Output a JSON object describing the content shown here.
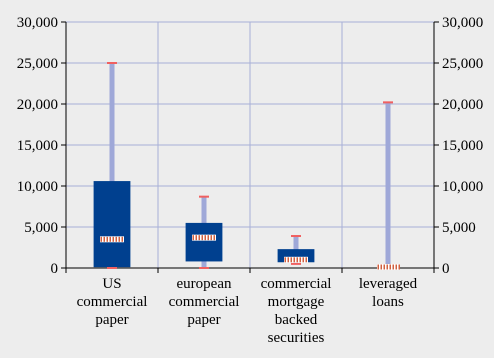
{
  "chart_data": {
    "type": "box",
    "title": "",
    "xlabel": "",
    "ylabel": "",
    "ylim": [
      0,
      30000
    ],
    "y_ticks": [
      "0",
      "5,000",
      "10,000",
      "15,000",
      "20,000",
      "25,000",
      "30,000"
    ],
    "y_tick_values": [
      0,
      5000,
      10000,
      15000,
      20000,
      25000,
      30000
    ],
    "right_axis_mirrors_left": true,
    "grid": true,
    "categories": [
      [
        "US",
        "commercial",
        "paper"
      ],
      [
        "european",
        "commercial",
        "paper"
      ],
      [
        "commercial",
        "mortgage",
        "backed",
        "securities"
      ],
      [
        "leveraged",
        "loans"
      ]
    ],
    "series": [
      {
        "boxes": [
          {
            "whisker_low": 0,
            "box_low": 100,
            "median": 3500,
            "box_high": 10600,
            "whisker_high": 25000
          },
          {
            "whisker_low": 0,
            "box_low": 800,
            "median": 3700,
            "box_high": 5500,
            "whisker_high": 8700
          },
          {
            "whisker_low": 500,
            "box_low": 700,
            "median": 1000,
            "box_high": 2300,
            "whisker_high": 3900
          },
          {
            "whisker_low": 0,
            "box_low": 0,
            "median": 0,
            "box_high": 100,
            "whisker_high": 20200
          }
        ]
      }
    ],
    "colors": {
      "box_fill": "#00408f",
      "whisker": "#9fa8d8",
      "cap": "#f06060",
      "median_fill": "#ffffff",
      "median_stripe": "#d06040",
      "grid": "#a8b0d8",
      "background": "#ededed",
      "axis": "#000000"
    }
  }
}
